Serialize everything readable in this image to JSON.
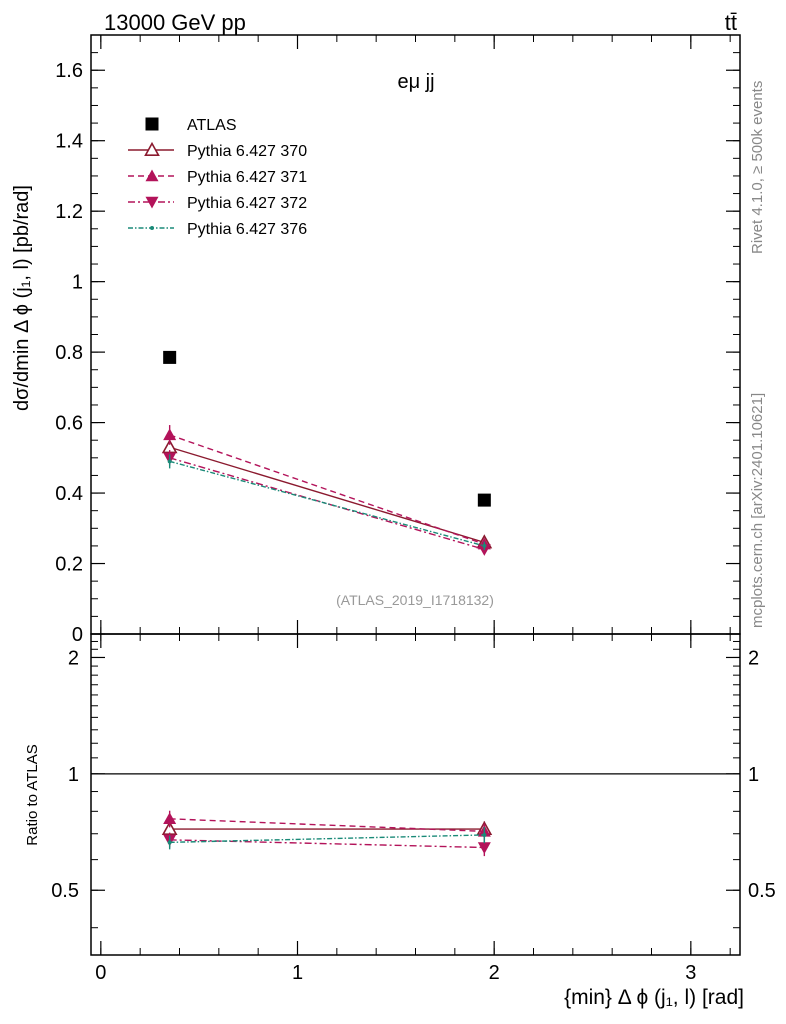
{
  "header": {
    "energy_label": "13000 GeV pp",
    "process_label": "tt̄",
    "panel_label": "eμ jj",
    "analysis_id": "(ATLAS_2019_I1718132)",
    "side_label_top": "Rivet 4.1.0, ≥ 500k events",
    "side_label_bottom": "mcplots.cern.ch [arXiv:2401.10621]"
  },
  "chart_data": {
    "type": "scatter",
    "x": [
      0.35,
      1.95
    ],
    "xlabel": "{min} Δ ϕ (j₁, l) [rad]",
    "ylabel": "dσ/dmin Δ ϕ (j₁, l) [pb/rad]",
    "ratio_ylabel": "Ratio to ATLAS",
    "xlim": [
      -0.05,
      3.25
    ],
    "ylim": [
      0,
      1.7
    ],
    "ratio_ylim": [
      0.34,
      2.3
    ],
    "x_ticks": [
      0,
      1,
      2,
      3
    ],
    "y_ticks": [
      0,
      0.2,
      0.4,
      0.6,
      0.8,
      1,
      1.2,
      1.4,
      1.6
    ],
    "ratio_ticks": [
      0.5,
      1,
      2
    ],
    "legend_position": "top-left",
    "series": [
      {
        "name": "ATLAS",
        "values": [
          0.785,
          0.38
        ],
        "ratio": [
          1,
          1
        ],
        "err": [
          0,
          0
        ],
        "color": "#000000",
        "marker": "square",
        "dash": "none"
      },
      {
        "name": "Pythia 6.427 370",
        "values": [
          0.53,
          0.26
        ],
        "ratio": [
          0.72,
          0.72
        ],
        "err": [
          0.02,
          0.012
        ],
        "color": "#8b1a2f",
        "marker": "triangle-open",
        "dash": "solid"
      },
      {
        "name": "Pythia 6.427 371",
        "values": [
          0.565,
          0.255
        ],
        "ratio": [
          0.765,
          0.71
        ],
        "err": [
          0.028,
          0.012
        ],
        "color": "#b3135a",
        "marker": "triangle-up",
        "dash": "dashed"
      },
      {
        "name": "Pythia 6.427 372",
        "values": [
          0.5,
          0.24
        ],
        "ratio": [
          0.675,
          0.645
        ],
        "err": [
          0.022,
          0.012
        ],
        "color": "#b3135a",
        "marker": "triangle-down",
        "dash": "dashdot"
      },
      {
        "name": "Pythia 6.427 376",
        "values": [
          0.49,
          0.25
        ],
        "ratio": [
          0.665,
          0.695
        ],
        "err": [
          0.02,
          0.012
        ],
        "color": "#1a8a78",
        "marker": "dot",
        "dash": "dashdotted-fine"
      }
    ]
  }
}
